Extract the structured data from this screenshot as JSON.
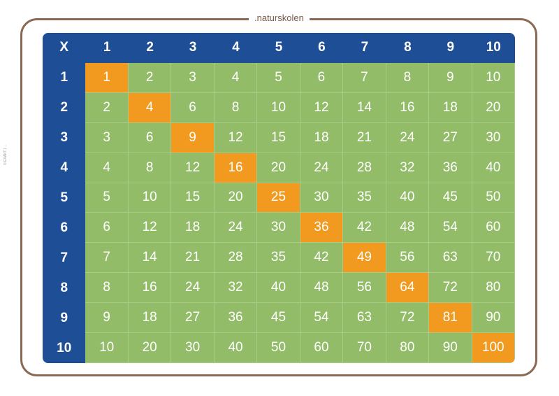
{
  "brand": ".naturskolen",
  "side_text": "© EXAKT | ...",
  "colors": {
    "header_bg": "#1e4e96",
    "cell_bg": "#93bc69",
    "diagonal_bg": "#f29a1f",
    "frame": "#8a6a54"
  },
  "table": {
    "corner": "X",
    "columns": [
      "1",
      "2",
      "3",
      "4",
      "5",
      "6",
      "7",
      "8",
      "9",
      "10"
    ],
    "rows": [
      {
        "label": "1",
        "values": [
          "1",
          "2",
          "3",
          "4",
          "5",
          "6",
          "7",
          "8",
          "9",
          "10"
        ]
      },
      {
        "label": "2",
        "values": [
          "2",
          "4",
          "6",
          "8",
          "10",
          "12",
          "14",
          "16",
          "18",
          "20"
        ]
      },
      {
        "label": "3",
        "values": [
          "3",
          "6",
          "9",
          "12",
          "15",
          "18",
          "21",
          "24",
          "27",
          "30"
        ]
      },
      {
        "label": "4",
        "values": [
          "4",
          "8",
          "12",
          "16",
          "20",
          "24",
          "28",
          "32",
          "36",
          "40"
        ]
      },
      {
        "label": "5",
        "values": [
          "5",
          "10",
          "15",
          "20",
          "25",
          "30",
          "35",
          "40",
          "45",
          "50"
        ]
      },
      {
        "label": "6",
        "values": [
          "6",
          "12",
          "18",
          "24",
          "30",
          "36",
          "42",
          "48",
          "54",
          "60"
        ]
      },
      {
        "label": "7",
        "values": [
          "7",
          "14",
          "21",
          "28",
          "35",
          "42",
          "49",
          "56",
          "63",
          "70"
        ]
      },
      {
        "label": "8",
        "values": [
          "8",
          "16",
          "24",
          "32",
          "40",
          "48",
          "56",
          "64",
          "72",
          "80"
        ]
      },
      {
        "label": "9",
        "values": [
          "9",
          "18",
          "27",
          "36",
          "45",
          "54",
          "63",
          "72",
          "81",
          "90"
        ]
      },
      {
        "label": "10",
        "values": [
          "10",
          "20",
          "30",
          "40",
          "50",
          "60",
          "70",
          "80",
          "90",
          "100"
        ]
      }
    ]
  }
}
